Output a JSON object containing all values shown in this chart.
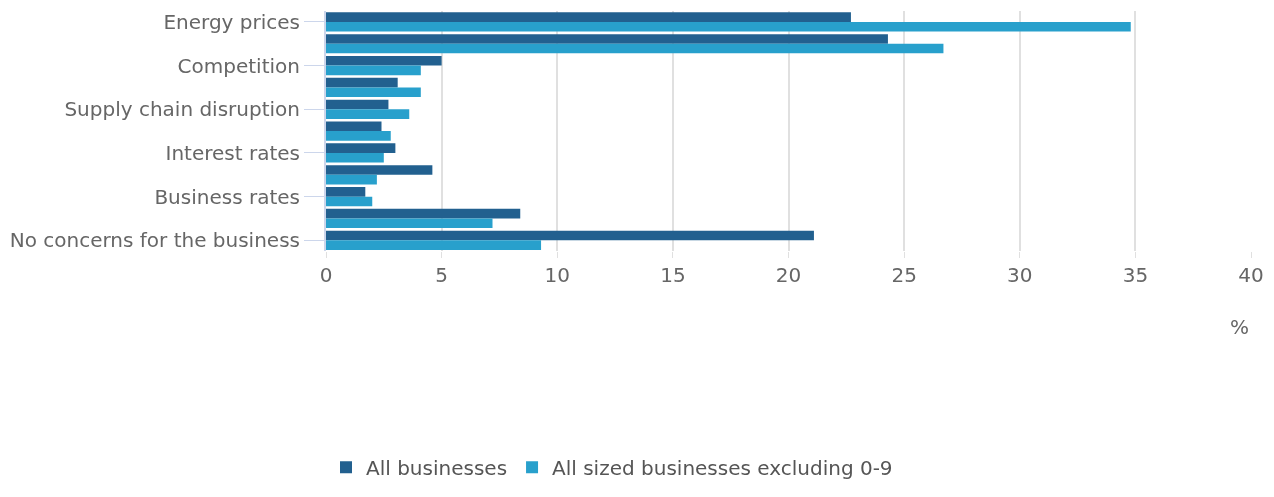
{
  "chart_data": {
    "type": "bar",
    "orientation": "horizontal",
    "xlabel": "%",
    "categories": [
      "Energy prices",
      null,
      "Competition",
      null,
      "Supply chain disruption",
      null,
      "Interest rates",
      null,
      "Business rates",
      null,
      "No concerns for the business"
    ],
    "series": [
      {
        "name": "All businesses",
        "color": "#22608f",
        "values": [
          22.7,
          24.3,
          5.0,
          3.1,
          2.7,
          2.4,
          3.0,
          4.6,
          1.7,
          8.4,
          21.1
        ]
      },
      {
        "name": "All sized businesses excluding 0-9",
        "color": "#28a0cc",
        "values": [
          34.8,
          26.7,
          4.1,
          4.1,
          3.6,
          2.8,
          2.5,
          2.2,
          2.0,
          7.2,
          9.3
        ]
      }
    ],
    "xlim": [
      0,
      40
    ],
    "xticks": [
      0,
      5,
      10,
      15,
      20,
      25,
      30,
      35,
      40
    ],
    "grid": "x",
    "legend": "bottom left"
  }
}
